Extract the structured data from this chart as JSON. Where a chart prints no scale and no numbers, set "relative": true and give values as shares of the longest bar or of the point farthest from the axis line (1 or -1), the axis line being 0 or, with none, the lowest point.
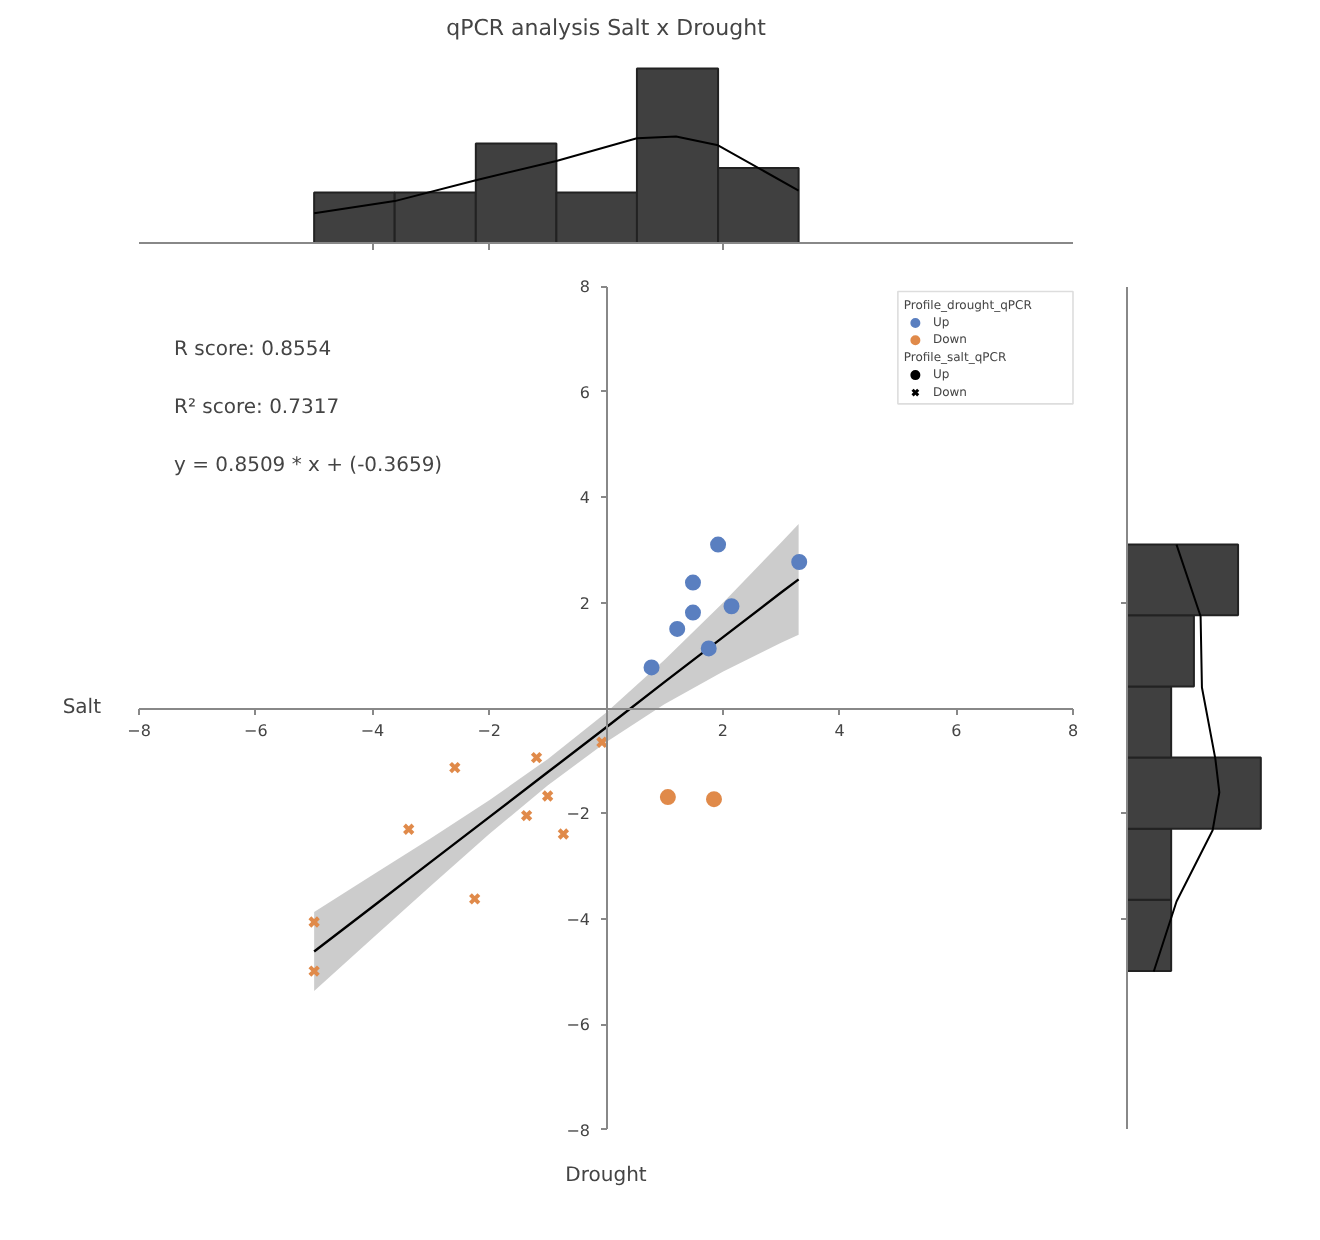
{
  "chart_data": [
    {
      "type": "histogram",
      "title": "qPCR analysis Salt x Drought",
      "relative": true,
      "bins": [
        -5,
        -3.62,
        -2.23,
        -0.85,
        0.53,
        1.92,
        3.3
      ],
      "values": [
        0.29,
        0.29,
        0.57,
        0.29,
        1,
        0.43
      ],
      "color": "#404040",
      "xlim": [
        -8,
        8
      ],
      "xticks": [
        -4,
        -2,
        2
      ],
      "tick_labels": false,
      "grid": false,
      "series": [
        {
          "type": "line",
          "color": "#000000",
          "x": [
            -5,
            -3.62,
            -2.23,
            -0.85,
            0.53,
            1.2,
            1.92,
            3.3
          ],
          "values": [
            0.17,
            0.24,
            0.36,
            0.47,
            0.6,
            0.61,
            0.56,
            0.3
          ]
        }
      ]
    },
    {
      "type": "scatter",
      "xlabel": "Drought",
      "ylabel": "Salt",
      "xlim": [
        -8,
        8
      ],
      "ylim": [
        -8,
        8
      ],
      "xticks": [
        -8,
        -6,
        -4,
        -2,
        2,
        4,
        6,
        8
      ],
      "yticks": [
        -8,
        -6,
        -4,
        -2,
        2,
        4,
        6,
        8
      ],
      "grid": false,
      "legend": "top right",
      "legend_title": "Profile_drought_qPCR",
      "annotations": [
        "R score: 0.8554",
        "R² score: 0.7317",
        "y = 0.8509 * x + (-0.3659)",
        "Profile_salt_qPCR",
        "Up",
        "Down"
      ],
      "series": [
        {
          "name": "Up",
          "color": "#5a7fc0",
          "marker": "circle",
          "x": [
            0.78,
            1.22,
            1.49,
            1.49,
            1.92,
            2.15,
            1.76,
            3.31
          ],
          "values": [
            0.77,
            1.5,
            1.81,
            2.38,
            3.1,
            1.93,
            1.13,
            2.77
          ]
        },
        {
          "color": "#e08a4a",
          "marker": "circle",
          "x": [
            1.06,
            1.85
          ],
          "values": [
            -1.69,
            -1.73
          ]
        },
        {
          "name": "Down",
          "color": "#e08a4a",
          "marker": "cross",
          "x": [
            -0.07,
            -1.19,
            -2.59,
            -1.0,
            -1.36,
            -0.73,
            -3.38,
            -2.25,
            -5.0,
            -5.0
          ],
          "values": [
            -0.65,
            -0.94,
            -1.13,
            -1.67,
            -2.04,
            -2.39,
            -2.3,
            -3.62,
            -4.06,
            -4.99
          ]
        },
        {
          "type": "line",
          "color": "#000000",
          "x": [
            -5,
            -4,
            -3,
            -2,
            -1,
            0,
            1,
            2,
            3,
            3.3
          ],
          "values": [
            -4.62,
            -3.77,
            -2.92,
            -2.07,
            -1.22,
            -0.37,
            0.49,
            1.34,
            2.19,
            2.44
          ],
          "lower": [
            -5.37,
            -4.37,
            -3.37,
            -2.39,
            -1.47,
            -0.65,
            0.07,
            0.69,
            1.24,
            1.39
          ],
          "upper": [
            -3.87,
            -3.17,
            -2.47,
            -1.75,
            -0.97,
            -0.09,
            0.91,
            1.99,
            3.14,
            3.49
          ]
        }
      ]
    },
    {
      "type": "histogram",
      "orientation": "horizontal",
      "relative": true,
      "bins": [
        -4.99,
        -3.64,
        -2.29,
        -0.94,
        0.41,
        1.76,
        3.1
      ],
      "values": [
        0.33,
        0.33,
        1,
        0.33,
        0.5,
        0.83
      ],
      "color": "#404040",
      "ylim": [
        -8,
        8
      ],
      "yticks": [
        -4,
        -2,
        2
      ],
      "tick_labels": false,
      "grid": false,
      "series": [
        {
          "type": "line",
          "color": "#000000",
          "x": [
            -5.0,
            -3.67,
            -2.32,
            -1.6,
            -0.96,
            0.39,
            1.74,
            3.1
          ],
          "values": [
            0.2,
            0.37,
            0.64,
            0.69,
            0.66,
            0.56,
            0.55,
            0.37
          ]
        }
      ]
    }
  ]
}
